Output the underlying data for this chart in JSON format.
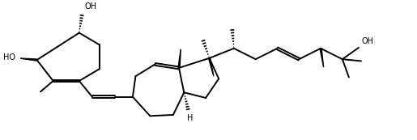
{
  "background": "#ffffff",
  "line_color": "#000000",
  "line_width": 1.4,
  "font_size": 7.0,
  "figsize": [
    5.15,
    1.73
  ],
  "dpi": 100,
  "xlim": [
    0.0,
    10.5
  ],
  "ylim": [
    0.2,
    4.0
  ]
}
